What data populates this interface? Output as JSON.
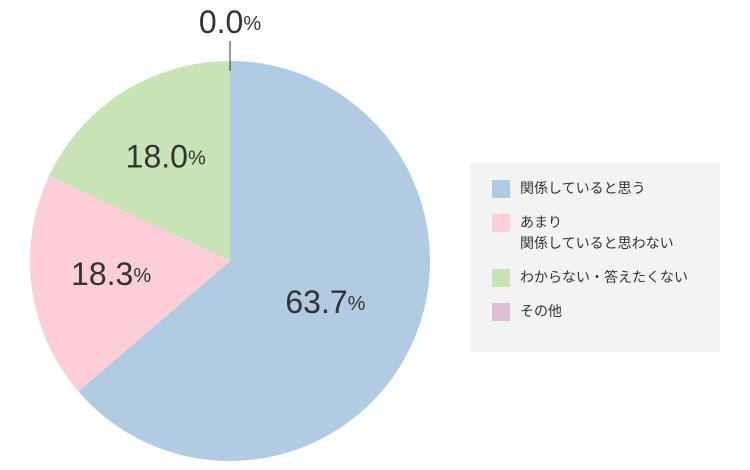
{
  "chart_data": {
    "type": "pie",
    "categories": [
      "関係していると思う",
      "あまり\n関係していると思わない",
      "わからない・答えたくない",
      "その他"
    ],
    "values": [
      63.7,
      18.3,
      18.0,
      0.0
    ],
    "value_labels": [
      "63.7%",
      "18.3%",
      "18.0%",
      "0.0%"
    ],
    "colors": [
      "#b0cbe2",
      "#fccfd8",
      "#c8e3b5",
      "#dcbfd6"
    ],
    "legend": "right"
  }
}
